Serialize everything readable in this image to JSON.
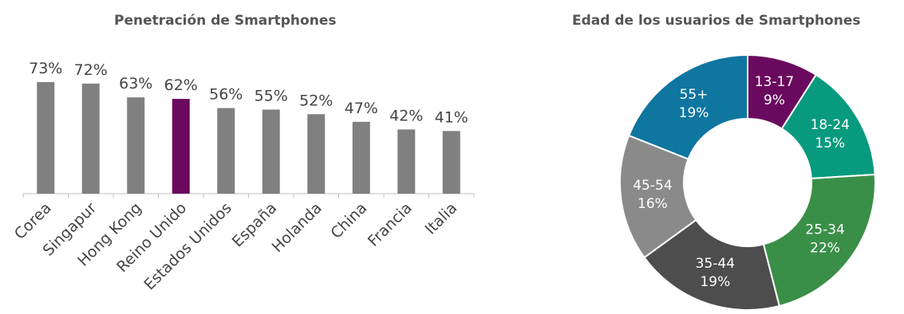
{
  "chart_data": [
    {
      "type": "bar",
      "title": "Penetración de Smartphones",
      "categories": [
        "Corea",
        "Singapur",
        "Hong Kong",
        "Reino Unido",
        "Estados Unidos",
        "España",
        "Holanda",
        "China",
        "Francia",
        "Italia"
      ],
      "values": [
        73,
        72,
        63,
        62,
        56,
        55,
        52,
        47,
        42,
        41
      ],
      "value_labels": [
        "73%",
        "72%",
        "63%",
        "62%",
        "56%",
        "55%",
        "52%",
        "47%",
        "42%",
        "41%"
      ],
      "ylim": [
        0,
        100
      ],
      "grid": false,
      "colors": {
        "default": "#808080",
        "highlight": "#6a0a5e"
      },
      "highlight_category": "Reino Unido"
    },
    {
      "type": "pie",
      "title": "Edad de los usuarios de Smartphones",
      "slices": [
        {
          "label": "13-17",
          "value": 9,
          "value_label": "9%",
          "color": "#6a0a5e"
        },
        {
          "label": "18-24",
          "value": 15,
          "value_label": "15%",
          "color": "#079a7e"
        },
        {
          "label": "25-34",
          "value": 22,
          "value_label": "22%",
          "color": "#3a8f48"
        },
        {
          "label": "35-44",
          "value": 19,
          "value_label": "19%",
          "color": "#4d4d4d"
        },
        {
          "label": "45-54",
          "value": 16,
          "value_label": "16%",
          "color": "#8a8a8a"
        },
        {
          "label": "55+",
          "value": 19,
          "value_label": "19%",
          "color": "#0f76a0"
        }
      ],
      "donut": true
    }
  ]
}
